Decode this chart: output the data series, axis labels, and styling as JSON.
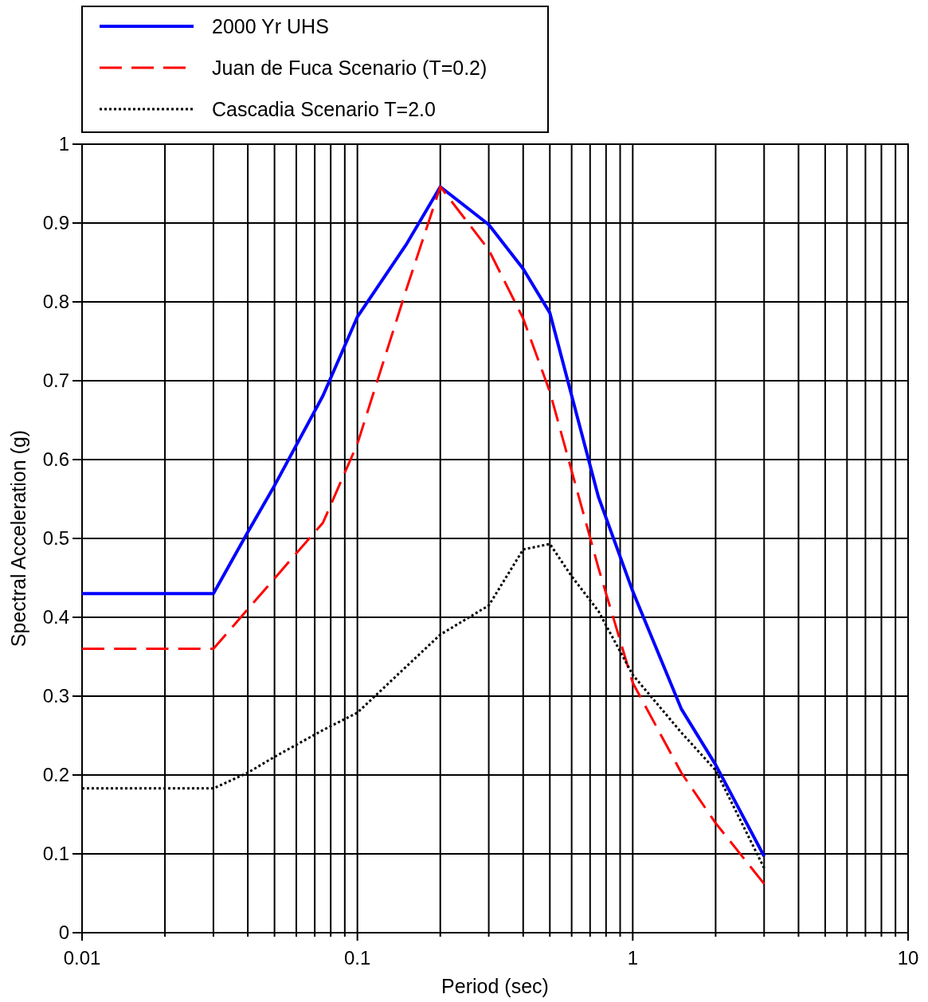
{
  "chart_data": {
    "type": "line",
    "xlabel": "Period (sec)",
    "ylabel": "Spectral Acceleration (g)",
    "log": "x",
    "grid": true,
    "legend": "top left",
    "xlim": [
      0.01,
      10
    ],
    "ylim": [
      0,
      1
    ],
    "xticks": [
      0.01,
      {
        "value": 0.02,
        "label": null
      },
      {
        "value": 0.03,
        "label": null
      },
      {
        "value": 0.04,
        "label": null
      },
      {
        "value": 0.05,
        "label": null
      },
      {
        "value": 0.06,
        "label": null
      },
      {
        "value": 0.07,
        "label": null
      },
      {
        "value": 0.08,
        "label": null
      },
      {
        "value": 0.09,
        "label": null
      },
      0.1,
      {
        "value": 0.2,
        "label": null
      },
      {
        "value": 0.3,
        "label": null
      },
      {
        "value": 0.4,
        "label": null
      },
      {
        "value": 0.5,
        "label": null
      },
      {
        "value": 0.6,
        "label": null
      },
      {
        "value": 0.7,
        "label": null
      },
      {
        "value": 0.8,
        "label": null
      },
      {
        "value": 0.9,
        "label": null
      },
      1,
      {
        "value": 2,
        "label": null
      },
      {
        "value": 3,
        "label": null
      },
      {
        "value": 4,
        "label": null
      },
      {
        "value": 5,
        "label": null
      },
      {
        "value": 6,
        "label": null
      },
      {
        "value": 7,
        "label": null
      },
      {
        "value": 8,
        "label": null
      },
      {
        "value": 9,
        "label": null
      },
      10
    ],
    "yticks": [
      0,
      0.1,
      0.2,
      0.3,
      0.4,
      0.5,
      0.6,
      0.7,
      0.8,
      0.9,
      1
    ],
    "series": [
      {
        "name": "2000 Yr UHS",
        "color": "#0000ff",
        "line_style": "solid",
        "x": [
          0.01,
          0.03,
          0.04,
          0.05,
          0.075,
          0.1,
          0.15,
          0.2,
          0.3,
          0.4,
          0.5,
          0.75,
          1,
          1.5,
          2,
          3
        ],
        "values": [
          0.43,
          0.43,
          0.508,
          0.567,
          0.681,
          0.781,
          0.872,
          0.946,
          0.898,
          0.842,
          0.786,
          0.553,
          0.433,
          0.284,
          0.213,
          0.097
        ]
      },
      {
        "name": "Juan de Fuca Scenario (T=0.2)",
        "color": "#ff0000",
        "line_style": "dashed",
        "x": [
          0.01,
          0.03,
          0.075,
          0.1,
          0.15,
          0.2,
          0.3,
          0.4,
          0.5,
          0.75,
          1,
          1.5,
          2,
          3
        ],
        "values": [
          0.36,
          0.36,
          0.52,
          0.62,
          0.814,
          0.946,
          0.866,
          0.779,
          0.686,
          0.463,
          0.317,
          0.203,
          0.139,
          0.062
        ]
      },
      {
        "name": "Cascadia Scenario T=2.0",
        "color": "#000000",
        "line_style": "dotted",
        "x": [
          0.01,
          0.03,
          0.04,
          0.05,
          0.075,
          0.1,
          0.15,
          0.2,
          0.3,
          0.4,
          0.5,
          0.6,
          0.75,
          1,
          1.5,
          2,
          3
        ],
        "values": [
          0.183,
          0.183,
          0.203,
          0.223,
          0.257,
          0.279,
          0.337,
          0.378,
          0.415,
          0.486,
          0.493,
          0.452,
          0.408,
          0.327,
          0.254,
          0.206,
          0.082
        ]
      }
    ]
  }
}
